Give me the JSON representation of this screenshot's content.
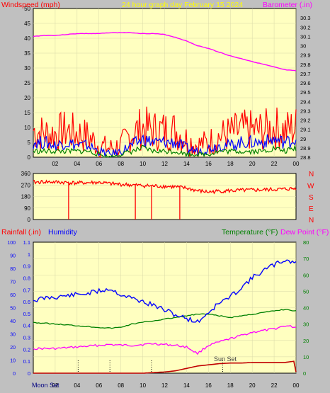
{
  "header": {
    "left_title": "Windspeed (mph)",
    "center_title": "24 hour graph day   February 15 2024",
    "right_title": "Barometer (.in)"
  },
  "colors": {
    "plot_bg": "#ffffc0",
    "frame_bg": "#c0c0c0",
    "wind_gust": "#ff0000",
    "wind_avg": "#0000ff",
    "wind_low": "#008000",
    "barometer": "#ff00ff",
    "wind_dir": "#ff0000",
    "humidity": "#0000ff",
    "temperature": "#008000",
    "dew_point": "#ff00ff",
    "rainfall": "#c00000",
    "title_yellow": "#ffff00",
    "label_red": "#ff0000",
    "label_blue": "#0000ff",
    "label_green": "#008000",
    "label_magenta": "#ff00ff"
  },
  "bottom_header": {
    "rainfall_label": "Rainfall (.in)",
    "humidity_label": "Humidity",
    "temperature_label": "Temperature (°F)",
    "dewpoint_label": "Dew Point (°F)"
  },
  "annotations": {
    "moon_set": "Moon Set",
    "sun_set": "Sun Set"
  },
  "compass": [
    "N",
    "W",
    "S",
    "E",
    "N"
  ],
  "chart_data": [
    {
      "type": "line",
      "name": "wind-barometer",
      "x_ticks": [
        "02",
        "04",
        "06",
        "08",
        "10",
        "12",
        "14",
        "16",
        "18",
        "20",
        "22",
        "00"
      ],
      "xlim": [
        0,
        24
      ],
      "ylim_left": [
        0,
        50
      ],
      "yticks_left": [
        0,
        5,
        10,
        15,
        20,
        25,
        30,
        35,
        40,
        45,
        50
      ],
      "ylim_right": [
        28.8,
        30.4
      ],
      "yticks_right": [
        "28.8",
        "28.9",
        "29",
        "29.1",
        "29.2",
        "29.3",
        "29.4",
        "29.5",
        "29.6",
        "29.7",
        "29.8",
        "29.9",
        "30",
        "30.1",
        "30.2",
        "30.3"
      ],
      "barometer": {
        "x": [
          0,
          1,
          2,
          3,
          4,
          5,
          6,
          7,
          8,
          9,
          10,
          11,
          12,
          13,
          14,
          15,
          16,
          17,
          18,
          19,
          20,
          21,
          22,
          23,
          24
        ],
        "y": [
          30.1,
          30.11,
          30.11,
          30.12,
          30.13,
          30.13,
          30.13,
          30.14,
          30.14,
          30.14,
          30.13,
          30.13,
          30.12,
          30.09,
          30.05,
          30.0,
          29.97,
          29.93,
          29.89,
          29.86,
          29.83,
          29.8,
          29.77,
          29.74,
          29.73
        ]
      },
      "wind_gust": {
        "x": [
          0,
          1,
          2,
          3,
          4,
          5,
          6,
          7,
          8,
          9,
          10,
          11,
          12,
          13,
          14,
          15,
          16,
          17,
          18,
          19,
          20,
          21,
          22,
          23,
          24
        ],
        "y": [
          9,
          8,
          8,
          9,
          8,
          7,
          4,
          3,
          4,
          8,
          10,
          9,
          9,
          9,
          6,
          4,
          5,
          7,
          8,
          9,
          9,
          9,
          10,
          9,
          10
        ]
      },
      "wind_avg": {
        "x": [
          0,
          1,
          2,
          3,
          4,
          5,
          6,
          7,
          8,
          9,
          10,
          11,
          12,
          13,
          14,
          15,
          16,
          17,
          18,
          19,
          20,
          21,
          22,
          23,
          24
        ],
        "y": [
          5,
          5,
          4,
          5,
          4,
          4,
          2,
          1,
          2,
          4,
          6,
          5,
          5,
          5,
          3,
          2,
          3,
          4,
          4,
          5,
          5,
          5,
          6,
          5,
          6
        ]
      },
      "wind_low": {
        "x": [
          0,
          1,
          2,
          3,
          4,
          5,
          6,
          7,
          8,
          9,
          10,
          11,
          12,
          13,
          14,
          15,
          16,
          17,
          18,
          19,
          20,
          21,
          22,
          23,
          24
        ],
        "y": [
          2,
          2,
          2,
          2,
          2,
          2,
          1,
          0,
          1,
          2,
          3,
          2,
          2,
          2,
          1,
          1,
          1,
          2,
          2,
          2,
          2,
          2,
          3,
          2,
          3
        ]
      }
    },
    {
      "type": "line",
      "name": "wind-direction",
      "xlim": [
        0,
        24
      ],
      "ylim": [
        0,
        360
      ],
      "yticks": [
        0,
        90,
        180,
        270,
        360
      ],
      "direction": {
        "x": [
          0,
          1,
          2,
          3,
          4,
          5,
          6,
          7,
          8,
          9,
          10,
          11,
          12,
          13,
          14,
          15,
          16,
          17,
          18,
          19,
          20,
          21,
          22,
          23,
          24
        ],
        "y": [
          290,
          295,
          292,
          290,
          285,
          288,
          290,
          280,
          275,
          270,
          265,
          262,
          260,
          255,
          245,
          225,
          215,
          222,
          225,
          228,
          230,
          232,
          235,
          238,
          242
        ]
      },
      "drop_to_zero_at": [
        3.2,
        9.3,
        10.8,
        13.4
      ]
    },
    {
      "type": "line",
      "name": "temp-humidity-rain",
      "x_ticks": [
        "02",
        "04",
        "06",
        "08",
        "10",
        "12",
        "14",
        "16",
        "18",
        "20",
        "22",
        "00"
      ],
      "xlim": [
        0,
        24
      ],
      "ylim_left_outer": [
        0,
        100
      ],
      "yticks_left_outer": [
        0,
        10,
        20,
        30,
        40,
        50,
        60,
        70,
        80,
        90,
        100
      ],
      "ylim_left_inner": [
        0,
        1.1
      ],
      "yticks_left_inner": [
        "0",
        "0.1",
        "0.2",
        "0.3",
        "0.4",
        "0.5",
        "0.6",
        "0.7",
        "0.8",
        "0.9",
        "1",
        "1.1"
      ],
      "ylim_right": [
        0,
        80
      ],
      "yticks_right": [
        0,
        10,
        20,
        30,
        40,
        50,
        60,
        70,
        80
      ],
      "humidity": {
        "x": [
          0,
          1,
          2,
          3,
          4,
          5,
          6,
          7,
          8,
          9,
          10,
          11,
          12,
          13,
          14,
          15,
          16,
          17,
          18,
          19,
          20,
          21,
          22,
          23,
          24
        ],
        "y": [
          0.61,
          0.63,
          0.64,
          0.65,
          0.66,
          0.67,
          0.69,
          0.71,
          0.66,
          0.63,
          0.6,
          0.57,
          0.53,
          0.49,
          0.46,
          0.43,
          0.51,
          0.59,
          0.64,
          0.72,
          0.8,
          0.86,
          0.91,
          0.95,
          0.93
        ]
      },
      "temperature": {
        "x": [
          0,
          1,
          2,
          3,
          4,
          5,
          6,
          7,
          8,
          9,
          10,
          11,
          12,
          13,
          14,
          15,
          16,
          17,
          18,
          19,
          20,
          21,
          22,
          23,
          24
        ],
        "y": [
          31,
          30.5,
          30,
          29.5,
          29,
          28.5,
          28,
          27.5,
          28,
          30,
          31,
          32,
          33,
          34,
          35,
          36,
          36,
          35,
          34,
          35,
          36,
          37,
          38,
          39,
          38
        ]
      },
      "dew_point": {
        "x": [
          0,
          1,
          2,
          3,
          4,
          5,
          6,
          7,
          8,
          9,
          10,
          11,
          12,
          13,
          14,
          15,
          16,
          17,
          18,
          19,
          20,
          21,
          22,
          23,
          24
        ],
        "y": [
          15,
          15,
          15,
          15.5,
          16,
          16.5,
          17,
          17.5,
          17,
          17,
          17.5,
          18,
          17.5,
          17,
          16,
          12,
          17,
          19,
          21,
          23,
          25,
          26,
          27,
          29,
          28
        ]
      },
      "rainfall": {
        "x": [
          0,
          10,
          11,
          12,
          13,
          14,
          15,
          16,
          17,
          18,
          19,
          20,
          21,
          22,
          23,
          23.8,
          24
        ],
        "y": [
          0,
          0,
          0.005,
          0.01,
          0.02,
          0.04,
          0.06,
          0.07,
          0.08,
          0.085,
          0.085,
          0.09,
          0.09,
          0.09,
          0.09,
          0.1,
          0.01
        ]
      },
      "event_markers_x": [
        4.1,
        7,
        10.8,
        17.3
      ],
      "sunset_x": 17.3
    }
  ]
}
